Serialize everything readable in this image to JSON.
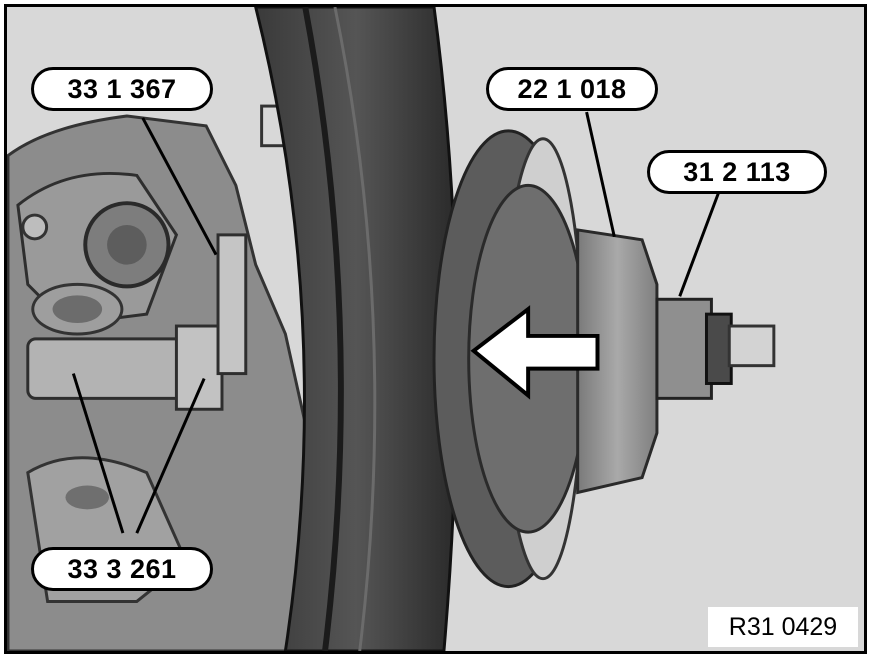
{
  "figure": {
    "callouts": {
      "c1": "33 1 367",
      "c2": "22 1 018",
      "c3": "31 2 113",
      "c4": "33 3 261"
    },
    "reference_code": "R31 0429",
    "icons": [
      "press-direction-arrow-icon"
    ],
    "colors": {
      "background": "#d9d9d9",
      "outline": "#000000",
      "label_fill": "#ffffff"
    }
  }
}
